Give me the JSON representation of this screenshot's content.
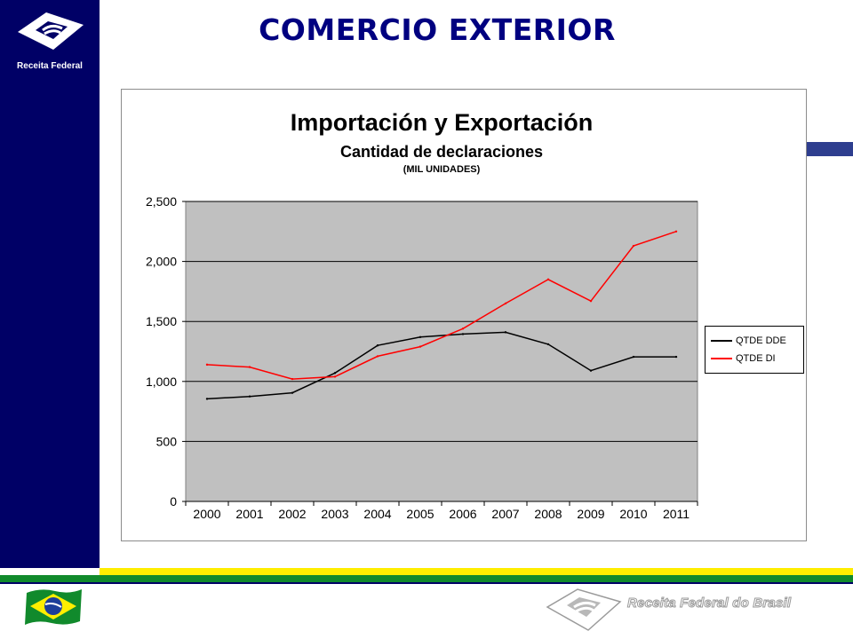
{
  "brand": {
    "logo_text": "Receita Federal",
    "footer_text": "Receita Federal do Brasil"
  },
  "page": {
    "title": "COMERCIO EXTERIOR"
  },
  "colors": {
    "sidebar": "#000066",
    "title": "#000080",
    "plot_bg": "#c0c0c0",
    "series_dde": "#000000",
    "series_di": "#ff0000",
    "stripe_yellow": "#ffee00",
    "stripe_green": "#118a2c"
  },
  "icons": {
    "logo": "receita-federal-logo-icon",
    "flag": "brazil-flag-icon",
    "footer": "receita-federal-watermark-icon"
  },
  "chart_data": {
    "type": "line",
    "title": "Importación y Exportación",
    "subtitle": "Cantidad de declaraciones",
    "units": "(MIL UNIDADES)",
    "categories": [
      "2000",
      "2001",
      "2002",
      "2003",
      "2004",
      "2005",
      "2006",
      "2007",
      "2008",
      "2009",
      "2010",
      "2011"
    ],
    "yticks": [
      "0",
      "500",
      "1,000",
      "1,500",
      "2,000",
      "2,500"
    ],
    "ylim": [
      0,
      2500
    ],
    "grid": true,
    "legend_position": "right",
    "series": [
      {
        "name": "QTDE DDE",
        "color": "#000000",
        "values": [
          855,
          875,
          905,
          1070,
          1300,
          1370,
          1395,
          1410,
          1310,
          1090,
          1205,
          1205
        ]
      },
      {
        "name": "QTDE DI",
        "color": "#ff0000",
        "values": [
          1140,
          1120,
          1020,
          1040,
          1210,
          1290,
          1440,
          1650,
          1850,
          1670,
          2130,
          2250
        ]
      }
    ]
  }
}
